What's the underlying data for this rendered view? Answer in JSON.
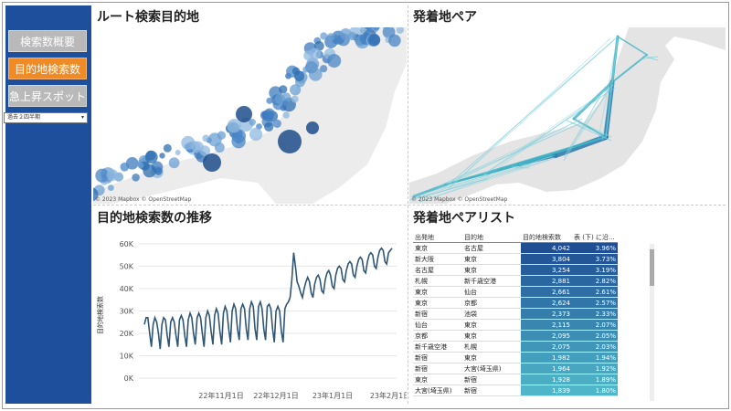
{
  "nav": {
    "buttons": [
      {
        "label": "検索数概要",
        "state": "inactive"
      },
      {
        "label": "目的地検索数",
        "state": "active"
      },
      {
        "label": "急上昇スポット",
        "state": "inactive"
      }
    ],
    "period": "過去２四半期",
    "colors": {
      "sidebar": "#1e4f9c",
      "active": "#f08a24",
      "inactive": "#b9b9b9"
    }
  },
  "panels": {
    "route_map": {
      "title": "ルート検索目的地",
      "attribution": "© 2023 Mapbox © OpenStreetMap"
    },
    "pair_map": {
      "title": "発着地ペア",
      "attribution": "© 2023 Mapbox © OpenStreetMap"
    },
    "trend": {
      "title": "目的地検索数の推移"
    },
    "pair_list": {
      "title": "発着地ペアリスト"
    }
  },
  "chart_data": {
    "type": "line",
    "title": "目的地検索数の推移",
    "ylabel": "目的地検索数",
    "xlabel": "",
    "yticks": [
      "60K",
      "50K",
      "40K",
      "30K",
      "20K",
      "10K",
      "0K"
    ],
    "ylim": [
      0,
      62000
    ],
    "xticks": [
      "22年11月1日",
      "22年12月1日",
      "23年1月1日",
      "23年2月1日"
    ],
    "x_start": "2022-10-07",
    "values": [
      24000,
      27000,
      27000,
      20000,
      14000,
      24000,
      27000,
      25000,
      20000,
      13000,
      24000,
      27000,
      26000,
      19000,
      14000,
      25000,
      27000,
      25000,
      19000,
      14000,
      26000,
      28000,
      26000,
      19000,
      14000,
      26000,
      29000,
      27000,
      20000,
      15000,
      27000,
      29000,
      27000,
      20000,
      14000,
      27000,
      30000,
      28000,
      21000,
      15000,
      28000,
      31000,
      29000,
      21000,
      15000,
      29000,
      32000,
      30000,
      22000,
      16000,
      30000,
      33000,
      31000,
      22000,
      17000,
      31000,
      33000,
      31000,
      22000,
      17000,
      31000,
      34000,
      32000,
      22000,
      17000,
      32000,
      34000,
      31000,
      22000,
      17000,
      32000,
      33000,
      31000,
      22000,
      16000,
      30000,
      32000,
      30000,
      21000,
      16000,
      31000,
      33000,
      34000,
      36000,
      44000,
      56000,
      50000,
      43000,
      41000,
      38000,
      36000,
      40000,
      43000,
      45000,
      43000,
      38000,
      36000,
      42000,
      45000,
      46000,
      44000,
      39000,
      38000,
      44000,
      47000,
      48000,
      46000,
      41000,
      40000,
      46000,
      49000,
      50000,
      49000,
      44000,
      43000,
      48000,
      51000,
      52000,
      51000,
      46000,
      45000,
      50000,
      53000,
      54000,
      53000,
      48000,
      47000,
      52000,
      55000,
      56000,
      55000,
      50000,
      49000,
      54000,
      57000,
      58000,
      57000,
      52000,
      51000,
      56000,
      57000,
      58000
    ]
  },
  "pair_list": {
    "headers": [
      "出発地",
      "目的地",
      "目的地検索数",
      "表 (下) に沿..."
    ],
    "rows": [
      [
        "東京",
        "名古屋",
        "4,042",
        "3.96%"
      ],
      [
        "新大阪",
        "東京",
        "3,804",
        "3.73%"
      ],
      [
        "名古屋",
        "東京",
        "3,254",
        "3.19%"
      ],
      [
        "札幌",
        "新千歳空港",
        "2,881",
        "2.82%"
      ],
      [
        "東京",
        "仙台",
        "2,661",
        "2.61%"
      ],
      [
        "東京",
        "京都",
        "2,624",
        "2.57%"
      ],
      [
        "新宿",
        "池袋",
        "2,373",
        "2.33%"
      ],
      [
        "仙台",
        "東京",
        "2,115",
        "2.07%"
      ],
      [
        "京都",
        "東京",
        "2,095",
        "2.05%"
      ],
      [
        "新千歳空港",
        "札幌",
        "2,075",
        "2.03%"
      ],
      [
        "新宿",
        "東京",
        "1,982",
        "1.94%"
      ],
      [
        "新宿",
        "大宮(埼玉県)",
        "1,964",
        "1.92%"
      ],
      [
        "東京",
        "新宿",
        "1,928",
        "1.89%"
      ],
      [
        "大宮(埼玉県)",
        "新宿",
        "1,839",
        "1.80%"
      ]
    ],
    "colors": {
      "high": "#1f4e93",
      "low": "#4fb6c9"
    }
  }
}
